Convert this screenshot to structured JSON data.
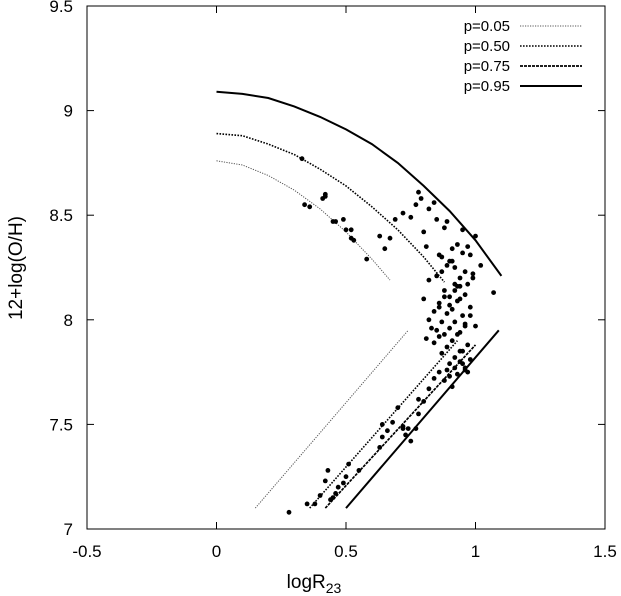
{
  "chart_data": {
    "type": "scatter",
    "xlabel": "logR",
    "xlabel_sub": "23",
    "ylabel": "12+log(O/H)",
    "xlim": [
      -0.5,
      1.5
    ],
    "ylim": [
      7,
      9.5
    ],
    "xticks": [
      -0.5,
      0,
      0.5,
      1,
      1.5
    ],
    "xtick_labels": [
      "-0.5",
      "0",
      "0.5",
      "1",
      "1.5"
    ],
    "yticks": [
      7,
      7.5,
      8,
      8.5,
      9,
      9.5
    ],
    "ytick_labels": [
      "7",
      "7.5",
      "8",
      "8.5",
      "9",
      "9.5"
    ],
    "grid": false,
    "legend_position": "top-right",
    "series": [
      {
        "name": "p=0.05",
        "style": "fine-dotted",
        "width": 1.0,
        "color": "#555555",
        "upper": {
          "x": [
            0,
            0.1,
            0.2,
            0.3,
            0.4,
            0.5,
            0.6,
            0.67
          ],
          "y": [
            8.76,
            8.74,
            8.69,
            8.62,
            8.53,
            8.42,
            8.29,
            8.19
          ]
        },
        "lower": {
          "x": [
            0.15,
            0.74
          ],
          "y": [
            7.1,
            7.95
          ]
        }
      },
      {
        "name": "p=0.50",
        "style": "dotted",
        "width": 1.6,
        "color": "#000000",
        "upper": {
          "x": [
            0,
            0.1,
            0.2,
            0.3,
            0.4,
            0.5,
            0.6,
            0.7,
            0.8,
            0.88
          ],
          "y": [
            8.89,
            8.88,
            8.84,
            8.79,
            8.72,
            8.64,
            8.54,
            8.43,
            8.3,
            8.18
          ]
        },
        "lower": {
          "x": [
            0.36,
            0.93
          ],
          "y": [
            7.1,
            7.9
          ]
        }
      },
      {
        "name": "p=0.75",
        "style": "densely-dashed",
        "width": 1.7,
        "color": "#000000",
        "upper": {
          "x": [],
          "y": []
        },
        "lower": {
          "x": [
            0.42,
            1.0
          ],
          "y": [
            7.1,
            7.88
          ]
        }
      },
      {
        "name": "p=0.95",
        "style": "solid",
        "width": 2.0,
        "color": "#000000",
        "upper": {
          "x": [
            0,
            0.1,
            0.2,
            0.3,
            0.4,
            0.5,
            0.6,
            0.7,
            0.8,
            0.9,
            1.0,
            1.1
          ],
          "y": [
            9.09,
            9.08,
            9.06,
            9.02,
            8.97,
            8.91,
            8.84,
            8.75,
            8.64,
            8.52,
            8.38,
            8.21
          ]
        },
        "lower": {
          "x": [
            0.5,
            1.09
          ],
          "y": [
            7.1,
            7.95
          ]
        }
      }
    ],
    "points": {
      "x": [
        0.33,
        0.34,
        0.36,
        0.41,
        0.42,
        0.42,
        0.45,
        0.46,
        0.49,
        0.5,
        0.52,
        0.52,
        0.53,
        0.58,
        0.63,
        0.65,
        0.67,
        0.69,
        0.72,
        0.75,
        0.77,
        0.78,
        0.79,
        0.8,
        0.81,
        0.82,
        0.84,
        0.85,
        0.86,
        0.87,
        0.88,
        0.89,
        0.9,
        0.91,
        0.92,
        0.93,
        0.94,
        0.95,
        0.96,
        0.97,
        0.98,
        0.99,
        1.0,
        1.02,
        1.07,
        0.82,
        0.86,
        0.88,
        0.9,
        0.92,
        0.94,
        0.83,
        0.87,
        0.91,
        0.95,
        0.85,
        0.89,
        0.93,
        0.96,
        0.98,
        0.84,
        0.86,
        0.88,
        0.9,
        0.92,
        0.94,
        0.96,
        0.98,
        1.0,
        0.87,
        0.89,
        0.91,
        0.93,
        0.95,
        0.97,
        0.9,
        0.92,
        0.94,
        0.96,
        0.98,
        0.89,
        0.93,
        0.95,
        0.97,
        0.8,
        0.84,
        0.86,
        0.88,
        0.9,
        0.92,
        0.94,
        0.96,
        0.82,
        0.85,
        0.87,
        0.89,
        0.91,
        0.93,
        0.95,
        0.97,
        0.99,
        0.92,
        0.94,
        0.96,
        0.88,
        0.9,
        0.91,
        0.86,
        0.84,
        0.82,
        0.8,
        0.78,
        0.77,
        0.75,
        0.73,
        0.72,
        0.7,
        0.68,
        0.66,
        0.64,
        0.63,
        0.55,
        0.51,
        0.5,
        0.49,
        0.47,
        0.46,
        0.45,
        0.44,
        0.43,
        0.42,
        0.4,
        0.38,
        0.35,
        0.28,
        0.64,
        0.72,
        0.74,
        0.78,
        0.81
      ],
      "y": [
        8.77,
        8.55,
        8.54,
        8.58,
        8.59,
        8.6,
        8.47,
        8.47,
        8.48,
        8.43,
        8.39,
        8.43,
        8.38,
        8.29,
        8.4,
        8.34,
        8.39,
        8.48,
        8.51,
        8.49,
        8.55,
        8.61,
        8.58,
        8.42,
        8.35,
        8.53,
        8.56,
        8.48,
        8.31,
        8.3,
        8.44,
        8.47,
        8.28,
        8.34,
        8.25,
        8.16,
        8.2,
        8.43,
        8.23,
        8.17,
        8.31,
        8.22,
        8.4,
        8.26,
        8.13,
        8.0,
        8.08,
        8.14,
        8.11,
        8.17,
        8.1,
        7.96,
        7.99,
        8.05,
        8.02,
        7.95,
        8.03,
        8.09,
        7.98,
        8.06,
        7.89,
        7.92,
        7.93,
        7.96,
        7.99,
        7.94,
        7.97,
        8.02,
        7.97,
        7.84,
        7.87,
        7.9,
        7.93,
        7.85,
        7.88,
        7.79,
        7.82,
        7.85,
        7.77,
        7.81,
        7.76,
        7.74,
        7.79,
        7.75,
        8.1,
        8.04,
        8.06,
        8.11,
        8.07,
        8.14,
        8.16,
        8.12,
        8.19,
        8.21,
        8.23,
        8.26,
        8.28,
        8.36,
        8.32,
        8.35,
        8.2,
        7.77,
        7.8,
        7.76,
        7.71,
        7.73,
        7.68,
        7.75,
        7.72,
        7.67,
        7.61,
        7.55,
        7.48,
        7.42,
        7.45,
        7.48,
        7.58,
        7.51,
        7.47,
        7.44,
        7.39,
        7.28,
        7.31,
        7.25,
        7.22,
        7.2,
        7.17,
        7.15,
        7.14,
        7.28,
        7.23,
        7.16,
        7.12,
        7.12,
        7.08,
        7.5,
        7.49,
        7.48,
        7.62,
        7.91
      ]
    }
  }
}
